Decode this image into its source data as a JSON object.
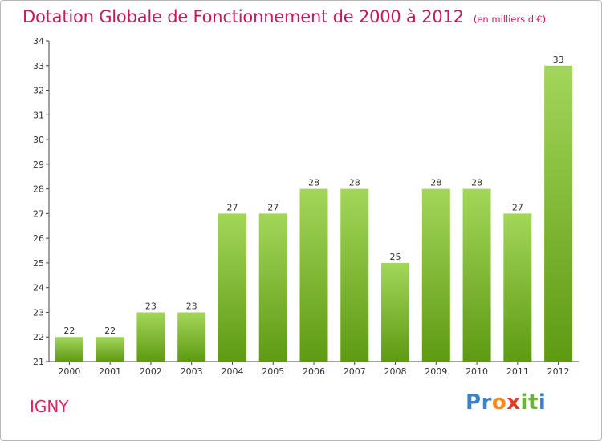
{
  "chart_data": {
    "type": "bar",
    "title": "Dotation Globale de Fonctionnement de 2000 à 2012",
    "subtitle": "(en milliers d'€)",
    "categories": [
      "2000",
      "2001",
      "2002",
      "2003",
      "2004",
      "2005",
      "2006",
      "2007",
      "2008",
      "2009",
      "2010",
      "2011",
      "2012"
    ],
    "values": [
      22,
      22,
      23,
      23,
      27,
      27,
      28,
      28,
      25,
      28,
      28,
      27,
      33
    ],
    "ylim": [
      21,
      34
    ],
    "yticks": [
      21,
      22,
      23,
      24,
      25,
      26,
      27,
      28,
      29,
      30,
      31,
      32,
      33,
      34
    ],
    "grid": false,
    "bar_color_top": "#a3d65a",
    "bar_color_bottom": "#5e9a12"
  },
  "commune": "IGNY",
  "logo": {
    "letters": [
      "P",
      "r",
      "o",
      "x",
      "i",
      "t",
      "i"
    ],
    "colors": [
      "#3c82c8",
      "#3c82c8",
      "#f28c1e",
      "#e03a2a",
      "#6db33f",
      "#6db33f",
      "#3c82c8"
    ]
  }
}
